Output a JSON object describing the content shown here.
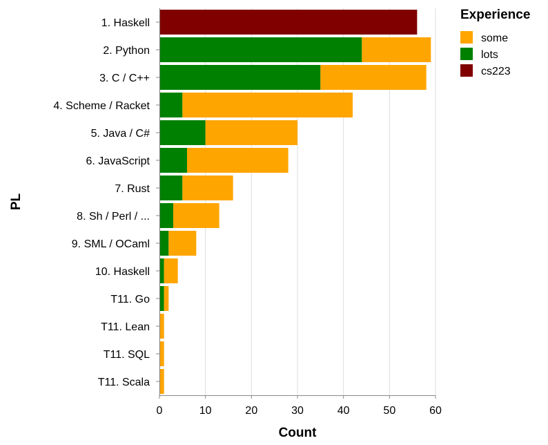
{
  "chart_data": {
    "type": "bar",
    "orientation": "horizontal",
    "stacked": true,
    "title": "",
    "xlabel": "Count",
    "ylabel": "PL",
    "xlim": [
      0,
      60
    ],
    "xticks": [
      0,
      10,
      20,
      30,
      40,
      50,
      60
    ],
    "grid": true,
    "categories": [
      "1. Haskell",
      "2. Python",
      "3. C / C++",
      "4. Scheme / Racket",
      "5. Java / C#",
      "6. JavaScript",
      "7. Rust",
      "8. Sh / Perl / ...",
      "9. SML / OCaml",
      "10. Haskell",
      "T11. Go",
      "T11. Lean",
      "T11. SQL",
      "T11. Scala"
    ],
    "series": [
      {
        "name": "cs223",
        "color": "#800000",
        "values": [
          56,
          0,
          0,
          0,
          0,
          0,
          0,
          0,
          0,
          0,
          0,
          0,
          0,
          0
        ]
      },
      {
        "name": "lots",
        "color": "#008000",
        "values": [
          0,
          44,
          35,
          5,
          10,
          6,
          5,
          3,
          2,
          1,
          1,
          0,
          0,
          0
        ]
      },
      {
        "name": "some",
        "color": "#ffa500",
        "values": [
          0,
          15,
          23,
          37,
          20,
          22,
          11,
          10,
          6,
          3,
          1,
          1,
          1,
          1
        ]
      }
    ],
    "legend": {
      "title": "Experience",
      "placement": "top-right",
      "entries": [
        {
          "label": "some",
          "color": "#ffa500"
        },
        {
          "label": "lots",
          "color": "#008000"
        },
        {
          "label": "cs223",
          "color": "#800000"
        }
      ]
    }
  }
}
